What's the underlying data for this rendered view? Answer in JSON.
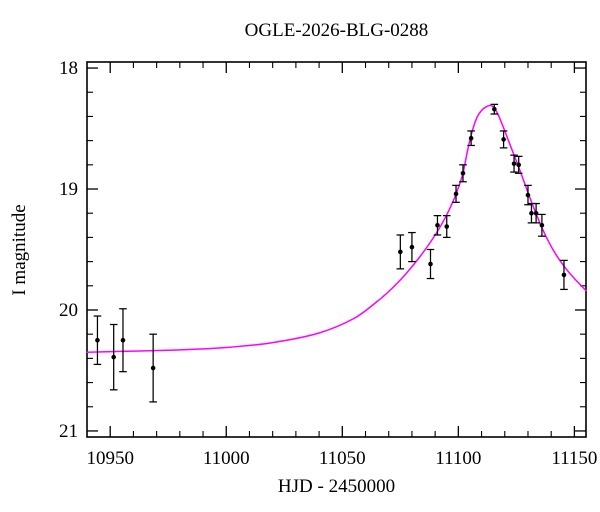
{
  "chart_data": {
    "type": "scatter",
    "title": "OGLE-2026-BLG-0288",
    "xlabel": "HJD - 2450000",
    "ylabel": "I magnitude",
    "x_range": [
      10940,
      11155
    ],
    "y_range_mag": [
      17.95,
      21.05
    ],
    "y_axis_inverted": true,
    "x_major_ticks": [
      10950,
      11000,
      11050,
      11100,
      11150
    ],
    "x_minor_tick_step": 10,
    "y_major_ticks": [
      18,
      19,
      20,
      21
    ],
    "y_minor_tick_step": 0.2,
    "grid": false,
    "legend": "none",
    "colors": {
      "model_curve": "#ff00ff",
      "data_points": "#000000",
      "axes": "#000000",
      "background": "#ffffff"
    },
    "data_points": [
      {
        "hjd": 10944.5,
        "mag": 20.25,
        "err": 0.2
      },
      {
        "hjd": 10951.5,
        "mag": 20.39,
        "err": 0.27
      },
      {
        "hjd": 10955.5,
        "mag": 20.25,
        "err": 0.26
      },
      {
        "hjd": 10968.5,
        "mag": 20.48,
        "err": 0.28
      },
      {
        "hjd": 11075.0,
        "mag": 19.52,
        "err": 0.14
      },
      {
        "hjd": 11080.0,
        "mag": 19.48,
        "err": 0.12
      },
      {
        "hjd": 11088.0,
        "mag": 19.62,
        "err": 0.12
      },
      {
        "hjd": 11091.0,
        "mag": 19.3,
        "err": 0.08
      },
      {
        "hjd": 11095.0,
        "mag": 19.31,
        "err": 0.09
      },
      {
        "hjd": 11099.0,
        "mag": 19.04,
        "err": 0.07
      },
      {
        "hjd": 11102.0,
        "mag": 18.87,
        "err": 0.07
      },
      {
        "hjd": 11105.5,
        "mag": 18.58,
        "err": 0.06
      },
      {
        "hjd": 11115.5,
        "mag": 18.34,
        "err": 0.04
      },
      {
        "hjd": 11119.5,
        "mag": 18.59,
        "err": 0.07
      },
      {
        "hjd": 11124.0,
        "mag": 18.79,
        "err": 0.07
      },
      {
        "hjd": 11126.0,
        "mag": 18.8,
        "err": 0.07
      },
      {
        "hjd": 11130.0,
        "mag": 19.05,
        "err": 0.08
      },
      {
        "hjd": 11131.5,
        "mag": 19.2,
        "err": 0.08
      },
      {
        "hjd": 11133.5,
        "mag": 19.2,
        "err": 0.08
      },
      {
        "hjd": 11136.0,
        "mag": 19.3,
        "err": 0.09
      },
      {
        "hjd": 11145.5,
        "mag": 19.71,
        "err": 0.12
      }
    ],
    "model_curve": {
      "description": "microlensing model fit",
      "peak": {
        "hjd": 11113.5,
        "mag": 18.31
      },
      "baseline_mag": 20.36,
      "samples": [
        [
          10940,
          20.35
        ],
        [
          10960,
          20.34
        ],
        [
          10980,
          20.33
        ],
        [
          11000,
          20.31
        ],
        [
          11020,
          20.27
        ],
        [
          11040,
          20.19
        ],
        [
          11055,
          20.07
        ],
        [
          11065,
          19.93
        ],
        [
          11071,
          19.83
        ],
        [
          11077,
          19.71
        ],
        [
          11083,
          19.57
        ],
        [
          11089,
          19.41
        ],
        [
          11094,
          19.25
        ],
        [
          11098,
          19.09
        ],
        [
          11100,
          18.99
        ],
        [
          11102,
          18.87
        ],
        [
          11104,
          18.68
        ],
        [
          11106,
          18.52
        ],
        [
          11108,
          18.41
        ],
        [
          11110,
          18.35
        ],
        [
          11112,
          18.32
        ],
        [
          11113.5,
          18.31
        ],
        [
          11115,
          18.32
        ],
        [
          11117,
          18.38
        ],
        [
          11119,
          18.47
        ],
        [
          11121,
          18.57
        ],
        [
          11124,
          18.72
        ],
        [
          11127,
          18.87
        ],
        [
          11130,
          19.03
        ],
        [
          11133,
          19.18
        ],
        [
          11136,
          19.32
        ],
        [
          11139,
          19.44
        ],
        [
          11142,
          19.54
        ],
        [
          11146,
          19.65
        ],
        [
          11150,
          19.74
        ],
        [
          11155,
          19.84
        ]
      ]
    }
  }
}
